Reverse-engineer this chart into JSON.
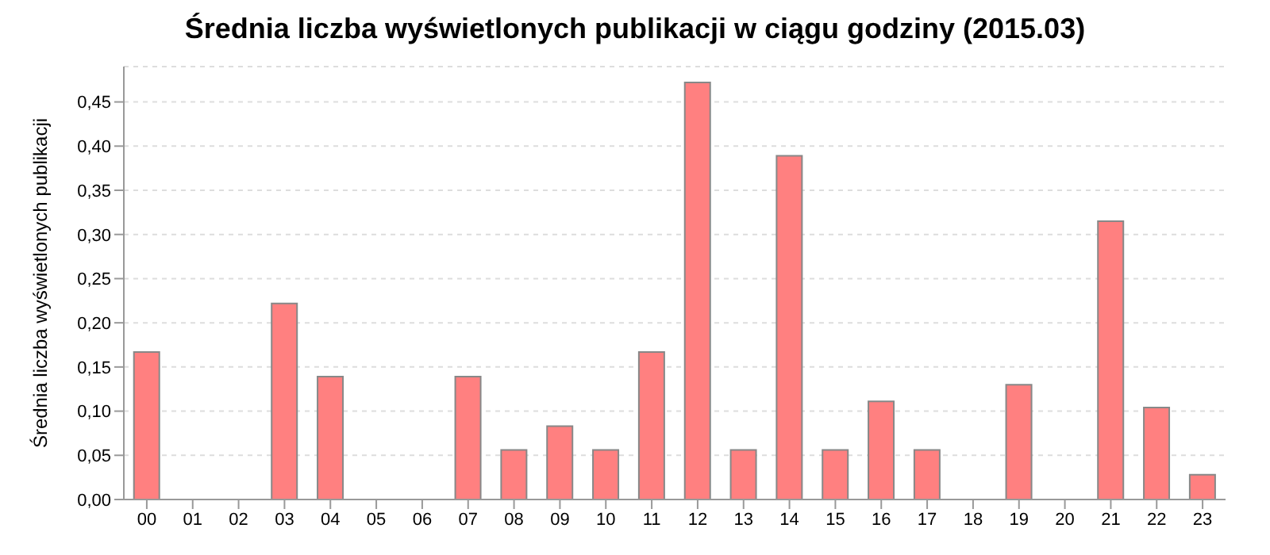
{
  "chart_data": {
    "type": "bar",
    "title": "Średnia liczba wyświetlonych publikacji w ciągu godziny (2015.03)",
    "ylabel": "Średnia liczba wyświetlonych publikacji",
    "categories": [
      "00",
      "01",
      "02",
      "03",
      "04",
      "05",
      "06",
      "07",
      "08",
      "09",
      "10",
      "11",
      "12",
      "13",
      "14",
      "15",
      "16",
      "17",
      "18",
      "19",
      "20",
      "21",
      "22",
      "23"
    ],
    "values": [
      0.167,
      0,
      0,
      0.222,
      0.139,
      0,
      0,
      0.139,
      0.056,
      0.083,
      0.056,
      0.167,
      0.472,
      0.056,
      0.389,
      0.056,
      0.111,
      0.056,
      0,
      0.13,
      0,
      0.315,
      0.104,
      0.028
    ],
    "color": "#ff8080",
    "ylim": [
      0,
      0.49
    ],
    "yticks": [
      {
        "value": 0,
        "label": "0,00"
      },
      {
        "value": 0.05,
        "label": "0,05"
      },
      {
        "value": 0.1,
        "label": "0,10"
      },
      {
        "value": 0.15,
        "label": "0,15"
      },
      {
        "value": 0.2,
        "label": "0,20"
      },
      {
        "value": 0.25,
        "label": "0,25"
      },
      {
        "value": 0.3,
        "label": "0,30"
      },
      {
        "value": 0.35,
        "label": "0,35"
      },
      {
        "value": 0.4,
        "label": "0,40"
      },
      {
        "value": 0.45,
        "label": "0,45"
      }
    ],
    "grid": "y"
  }
}
